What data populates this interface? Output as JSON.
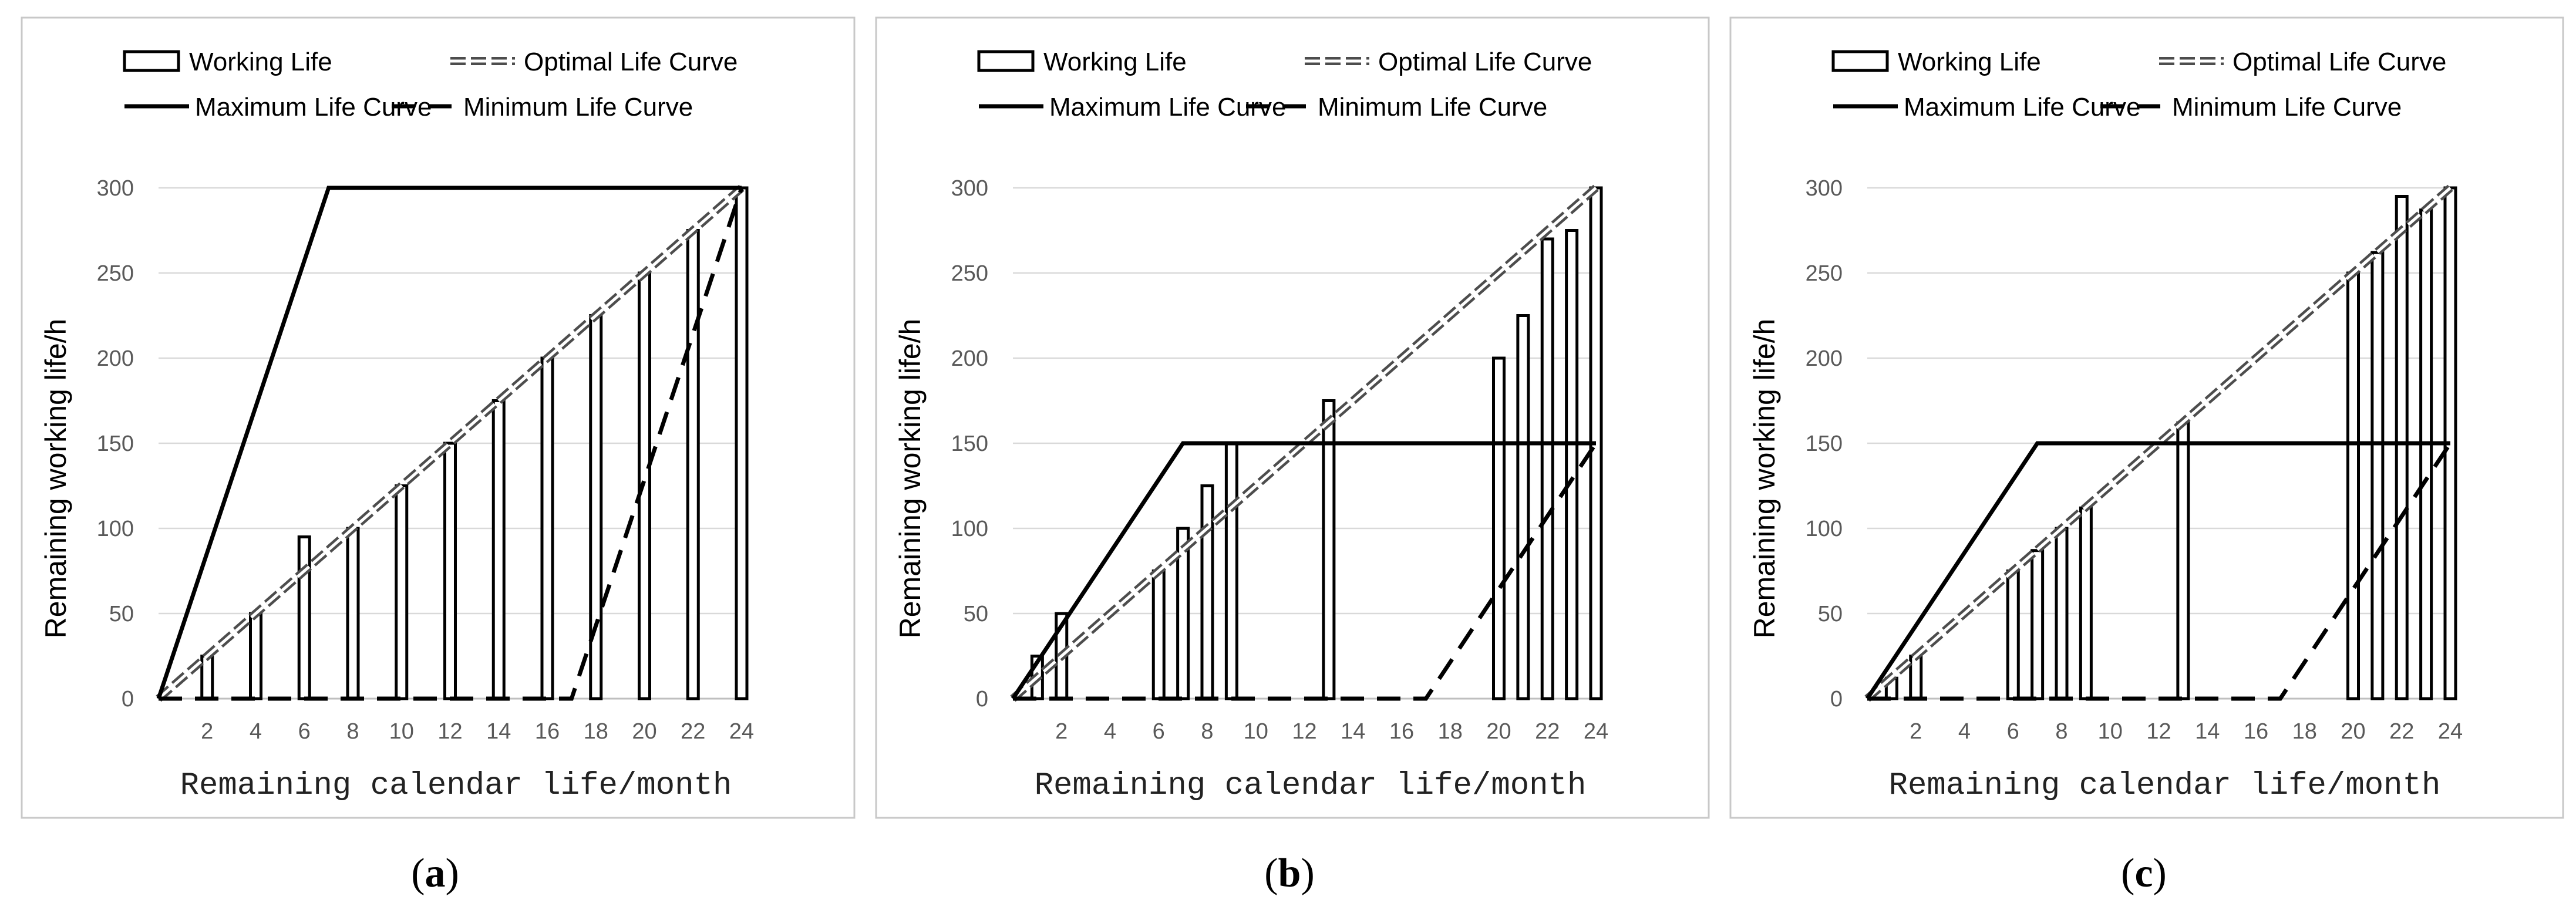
{
  "chart_data": [
    {
      "type": "bar+line",
      "caption_letter": "a",
      "caption_open": "(",
      "caption_close": ")",
      "xlabel": "Remaining calendar life/month",
      "ylabel": "Remaining working life/h",
      "xlim": [
        0,
        24
      ],
      "ylim": [
        0,
        300
      ],
      "x_ticks": [
        2,
        4,
        6,
        8,
        10,
        12,
        14,
        16,
        18,
        20,
        22,
        24
      ],
      "y_ticks": [
        0,
        50,
        100,
        150,
        200,
        250,
        300
      ],
      "legend": [
        "Working Life",
        "Optimal Life Curve",
        "Maximum Life Curve",
        "Minimum Life Curve"
      ],
      "bars": {
        "name": "Working Life",
        "x": [
          2,
          4,
          6,
          8,
          10,
          12,
          14,
          16,
          18,
          20,
          22,
          24
        ],
        "values": [
          25,
          50,
          95,
          100,
          125,
          150,
          175,
          200,
          225,
          250,
          275,
          300
        ]
      },
      "lines": [
        {
          "name": "Optimal Life Curve",
          "style": "double-dashed",
          "x": [
            0,
            24
          ],
          "y": [
            0,
            300
          ]
        },
        {
          "name": "Maximum Life Curve",
          "style": "solid",
          "x": [
            0,
            7,
            24
          ],
          "y": [
            0,
            300,
            300
          ]
        },
        {
          "name": "Minimum Life Curve",
          "style": "dashed",
          "x": [
            0,
            17,
            24
          ],
          "y": [
            0,
            0,
            300
          ]
        }
      ]
    },
    {
      "type": "bar+line",
      "caption_letter": "b",
      "caption_open": "(",
      "caption_close": ")",
      "xlabel": "Remaining calendar life/month",
      "ylabel": "Remaining working life/h",
      "xlim": [
        0,
        24
      ],
      "ylim": [
        0,
        300
      ],
      "x_ticks": [
        2,
        4,
        6,
        8,
        10,
        12,
        14,
        16,
        18,
        20,
        22,
        24
      ],
      "y_ticks": [
        0,
        50,
        100,
        150,
        200,
        250,
        300
      ],
      "legend": [
        "Working Life",
        "Optimal Life Curve",
        "Maximum Life Curve",
        "Minimum Life Curve"
      ],
      "bars": {
        "name": "Working Life",
        "x": [
          1,
          2,
          6,
          7,
          8,
          9,
          13,
          20,
          21,
          22,
          23,
          24
        ],
        "values": [
          25,
          50,
          75,
          100,
          125,
          150,
          175,
          200,
          225,
          270,
          275,
          300
        ]
      },
      "lines": [
        {
          "name": "Optimal Life Curve",
          "style": "double-dashed",
          "x": [
            0,
            24
          ],
          "y": [
            0,
            300
          ]
        },
        {
          "name": "Maximum Life Curve",
          "style": "solid",
          "x": [
            0,
            7,
            24
          ],
          "y": [
            0,
            150,
            150
          ]
        },
        {
          "name": "Minimum Life Curve",
          "style": "dashed",
          "x": [
            0,
            17,
            24
          ],
          "y": [
            0,
            0,
            150
          ]
        }
      ]
    },
    {
      "type": "bar+line",
      "caption_letter": "c",
      "caption_open": "(",
      "caption_close": ")",
      "xlabel": "Remaining calendar life/month",
      "ylabel": "Remaining working life/h",
      "xlim": [
        0,
        24
      ],
      "ylim": [
        0,
        300
      ],
      "x_ticks": [
        2,
        4,
        6,
        8,
        10,
        12,
        14,
        16,
        18,
        20,
        22,
        24
      ],
      "y_ticks": [
        0,
        50,
        100,
        150,
        200,
        250,
        300
      ],
      "legend": [
        "Working Life",
        "Optimal Life Curve",
        "Maximum Life Curve",
        "Minimum Life Curve"
      ],
      "bars": {
        "name": "Working Life",
        "x": [
          1,
          2,
          6,
          7,
          8,
          9,
          13,
          20,
          21,
          22,
          23,
          24
        ],
        "values": [
          12,
          25,
          75,
          87,
          100,
          112,
          162,
          250,
          262,
          295,
          287,
          300
        ]
      },
      "lines": [
        {
          "name": "Optimal Life Curve",
          "style": "double-dashed",
          "x": [
            0,
            24
          ],
          "y": [
            0,
            300
          ]
        },
        {
          "name": "Maximum Life Curve",
          "style": "solid",
          "x": [
            0,
            7,
            24
          ],
          "y": [
            0,
            150,
            150
          ]
        },
        {
          "name": "Minimum Life Curve",
          "style": "dashed",
          "x": [
            0,
            17,
            24
          ],
          "y": [
            0,
            0,
            150
          ]
        }
      ]
    }
  ]
}
